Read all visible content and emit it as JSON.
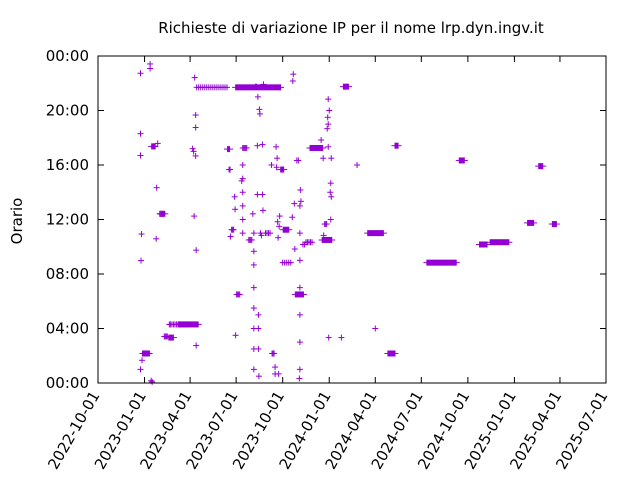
{
  "chart_data": {
    "type": "scatter",
    "title": "Richieste di variazione IP per il nome lrp.dyn.ingv.it",
    "xlabel": "",
    "ylabel": "Orario",
    "x_ticks": [
      "2022-10-01",
      "2023-01-01",
      "2023-04-01",
      "2023-07-01",
      "2023-10-01",
      "2024-01-01",
      "2024-04-01",
      "2024-07-01",
      "2024-10-01",
      "2025-01-01",
      "2025-04-01",
      "2025-07-01"
    ],
    "y_ticks": [
      "00:00",
      "04:00",
      "08:00",
      "12:00",
      "16:00",
      "20:00",
      "00:00"
    ],
    "xlim": [
      "2022-10-01",
      "2025-07-01"
    ],
    "ylim_hours": [
      0,
      24
    ],
    "grid": false,
    "legend": "none",
    "marker": "plus",
    "color": "#9400d3",
    "points": [
      {
        "date": "2022-12-24",
        "time": "22:44"
      },
      {
        "date": "2022-12-24",
        "time": "18:18"
      },
      {
        "date": "2022-12-24",
        "time": "16:42"
      },
      {
        "date": "2022-12-25",
        "time": "08:59"
      },
      {
        "date": "2022-12-26",
        "time": "10:56"
      },
      {
        "date": "2022-12-24",
        "time": "01:00"
      },
      {
        "date": "2022-12-27",
        "time": "01:40"
      },
      {
        "date": "2022-12-28",
        "time": "02:10"
      },
      {
        "date": "2022-12-30",
        "time": "02:10"
      },
      {
        "date": "2023-01-01",
        "time": "02:10"
      },
      {
        "date": "2023-01-03",
        "time": "02:10"
      },
      {
        "date": "2023-01-05",
        "time": "02:10"
      },
      {
        "date": "2023-01-07",
        "time": "02:10"
      },
      {
        "date": "2023-01-09",
        "time": "02:10"
      },
      {
        "date": "2023-01-11",
        "time": "02:10"
      },
      {
        "date": "2023-01-12",
        "time": "23:25"
      },
      {
        "date": "2023-01-12",
        "time": "23:05"
      },
      {
        "date": "2023-01-14",
        "time": "00:10"
      },
      {
        "date": "2023-01-16",
        "time": "00:05"
      },
      {
        "date": "2023-01-20",
        "time": "17:22"
      },
      {
        "date": "2023-01-22",
        "time": "17:22"
      },
      {
        "date": "2023-01-24",
        "time": "10:35"
      },
      {
        "date": "2023-01-25",
        "time": "14:20"
      },
      {
        "date": "2023-01-27",
        "time": "17:35"
      },
      {
        "date": "2023-01-31",
        "time": "12:25"
      },
      {
        "date": "2023-02-02",
        "time": "12:25"
      },
      {
        "date": "2023-02-04",
        "time": "12:25"
      },
      {
        "date": "2023-02-06",
        "time": "12:25"
      },
      {
        "date": "2023-02-09",
        "time": "03:25"
      },
      {
        "date": "2023-02-11",
        "time": "03:25"
      },
      {
        "date": "2023-02-13",
        "time": "03:25"
      },
      {
        "date": "2023-02-15",
        "time": "03:25"
      },
      {
        "date": "2023-02-19",
        "time": "04:18"
      },
      {
        "date": "2023-02-21",
        "time": "04:18"
      },
      {
        "date": "2023-02-24",
        "time": "04:18"
      },
      {
        "date": "2023-02-27",
        "time": "04:18"
      },
      {
        "date": "2023-03-02",
        "time": "04:18"
      },
      {
        "date": "2023-03-05",
        "time": "04:18"
      },
      {
        "date": "2023-03-08",
        "time": "04:18"
      },
      {
        "date": "2023-03-11",
        "time": "04:18"
      },
      {
        "date": "2023-03-14",
        "time": "04:18"
      },
      {
        "date": "2023-03-17",
        "time": "04:18"
      },
      {
        "date": "2023-03-20",
        "time": "04:18"
      },
      {
        "date": "2023-03-23",
        "time": "04:18"
      },
      {
        "date": "2023-03-26",
        "time": "04:18"
      },
      {
        "date": "2023-03-29",
        "time": "04:18"
      },
      {
        "date": "2023-04-06",
        "time": "17:12"
      },
      {
        "date": "2023-04-08",
        "time": "17:00"
      },
      {
        "date": "2023-04-09",
        "time": "12:15"
      },
      {
        "date": "2023-04-10",
        "time": "22:25"
      },
      {
        "date": "2023-04-12",
        "time": "19:40"
      },
      {
        "date": "2023-04-12",
        "time": "18:45"
      },
      {
        "date": "2023-04-12",
        "time": "16:40"
      },
      {
        "date": "2023-04-13",
        "time": "09:45"
      },
      {
        "date": "2023-04-13",
        "time": "02:45"
      },
      {
        "date": "2023-04-14",
        "time": "21:42"
      },
      {
        "date": "2023-04-18",
        "time": "21:42"
      },
      {
        "date": "2023-04-22",
        "time": "21:42"
      },
      {
        "date": "2023-04-26",
        "time": "21:42"
      },
      {
        "date": "2023-04-30",
        "time": "21:42"
      },
      {
        "date": "2023-05-04",
        "time": "21:42"
      },
      {
        "date": "2023-05-08",
        "time": "21:42"
      },
      {
        "date": "2023-05-12",
        "time": "21:42"
      },
      {
        "date": "2023-05-16",
        "time": "21:42"
      },
      {
        "date": "2023-05-20",
        "time": "21:42"
      },
      {
        "date": "2023-05-24",
        "time": "21:42"
      },
      {
        "date": "2023-05-28",
        "time": "21:42"
      },
      {
        "date": "2023-06-01",
        "time": "21:42"
      },
      {
        "date": "2023-06-05",
        "time": "21:42"
      },
      {
        "date": "2023-06-09",
        "time": "21:42"
      },
      {
        "date": "2023-06-13",
        "time": "21:42"
      },
      {
        "date": "2023-06-17",
        "time": "15:40"
      },
      {
        "date": "2023-06-19",
        "time": "15:40"
      },
      {
        "date": "2023-06-20",
        "time": "10:45"
      },
      {
        "date": "2023-06-22",
        "time": "11:15"
      },
      {
        "date": "2023-06-24",
        "time": "11:15"
      },
      {
        "date": "2023-06-26",
        "time": "11:15"
      },
      {
        "date": "2023-06-28",
        "time": "13:40"
      },
      {
        "date": "2023-06-29",
        "time": "12:45"
      },
      {
        "date": "2023-06-30",
        "time": "03:30"
      },
      {
        "date": "2023-07-02",
        "time": "06:30"
      },
      {
        "date": "2023-07-04",
        "time": "06:30"
      },
      {
        "date": "2023-07-06",
        "time": "06:30"
      },
      {
        "date": "2023-07-08",
        "time": "06:30"
      },
      {
        "date": "2023-07-12",
        "time": "14:50"
      },
      {
        "date": "2023-07-14",
        "time": "11:00"
      },
      {
        "date": "2023-07-14",
        "time": "12:00"
      },
      {
        "date": "2023-07-14",
        "time": "13:00"
      },
      {
        "date": "2023-07-14",
        "time": "14:00"
      },
      {
        "date": "2023-07-14",
        "time": "15:00"
      },
      {
        "date": "2023-07-14",
        "time": "16:00"
      },
      {
        "date": "2023-07-14",
        "time": "17:15"
      },
      {
        "date": "2023-07-16",
        "time": "17:15"
      },
      {
        "date": "2023-07-18",
        "time": "17:15"
      },
      {
        "date": "2023-07-20",
        "time": "17:15"
      },
      {
        "date": "2023-07-22",
        "time": "17:15"
      },
      {
        "date": "2023-07-26",
        "time": "10:30"
      },
      {
        "date": "2023-07-28",
        "time": "10:30"
      },
      {
        "date": "2023-07-30",
        "time": "10:30"
      },
      {
        "date": "2023-08-01",
        "time": "10:30"
      },
      {
        "date": "2023-08-03",
        "time": "12:25"
      },
      {
        "date": "2023-08-05",
        "time": "11:00"
      },
      {
        "date": "2023-08-05",
        "time": "09:40"
      },
      {
        "date": "2023-08-05",
        "time": "08:40"
      },
      {
        "date": "2023-08-05",
        "time": "07:00"
      },
      {
        "date": "2023-08-05",
        "time": "05:30"
      },
      {
        "date": "2023-08-05",
        "time": "04:00"
      },
      {
        "date": "2023-08-05",
        "time": "02:30"
      },
      {
        "date": "2023-08-05",
        "time": "01:00"
      },
      {
        "date": "2023-08-08",
        "time": "21:45"
      },
      {
        "date": "2023-08-10",
        "time": "21:45"
      },
      {
        "date": "2023-08-12",
        "time": "17:25"
      },
      {
        "date": "2023-08-12",
        "time": "13:50"
      },
      {
        "date": "2023-08-13",
        "time": "21:00"
      },
      {
        "date": "2023-08-14",
        "time": "05:00"
      },
      {
        "date": "2023-08-14",
        "time": "04:00"
      },
      {
        "date": "2023-08-14",
        "time": "02:30"
      },
      {
        "date": "2023-08-15",
        "time": "00:30"
      },
      {
        "date": "2023-08-16",
        "time": "20:05"
      },
      {
        "date": "2023-08-17",
        "time": "19:45"
      },
      {
        "date": "2023-08-18",
        "time": "11:00"
      },
      {
        "date": "2023-08-20",
        "time": "10:50"
      },
      {
        "date": "2023-08-22",
        "time": "17:30"
      },
      {
        "date": "2023-08-22",
        "time": "13:50"
      },
      {
        "date": "2023-08-23",
        "time": "12:40"
      },
      {
        "date": "2023-08-24",
        "time": "21:55"
      },
      {
        "date": "2023-08-28",
        "time": "11:00"
      },
      {
        "date": "2023-08-31",
        "time": "11:00"
      },
      {
        "date": "2023-09-03",
        "time": "11:00"
      },
      {
        "date": "2023-09-06",
        "time": "11:00"
      },
      {
        "date": "2023-09-09",
        "time": "16:00"
      },
      {
        "date": "2023-09-10",
        "time": "02:10"
      },
      {
        "date": "2023-09-12",
        "time": "02:10"
      },
      {
        "date": "2023-09-14",
        "time": "02:10"
      },
      {
        "date": "2023-09-16",
        "time": "01:10"
      },
      {
        "date": "2023-09-16",
        "time": "00:40"
      },
      {
        "date": "2023-09-18",
        "time": "17:20"
      },
      {
        "date": "2023-09-20",
        "time": "16:30"
      },
      {
        "date": "2023-09-19",
        "time": "15:50"
      },
      {
        "date": "2023-09-21",
        "time": "11:50"
      },
      {
        "date": "2023-09-22",
        "time": "10:40"
      },
      {
        "date": "2023-09-23",
        "time": "00:40"
      },
      {
        "date": "2023-09-24",
        "time": "11:30"
      },
      {
        "date": "2023-09-25",
        "time": "12:15"
      },
      {
        "date": "2023-10-01",
        "time": "08:50"
      },
      {
        "date": "2023-10-05",
        "time": "08:50"
      },
      {
        "date": "2023-10-09",
        "time": "08:50"
      },
      {
        "date": "2023-10-13",
        "time": "08:50"
      },
      {
        "date": "2023-10-17",
        "time": "08:50"
      },
      {
        "date": "2023-10-20",
        "time": "12:10"
      },
      {
        "date": "2023-10-21",
        "time": "22:10"
      },
      {
        "date": "2023-10-22",
        "time": "22:40"
      },
      {
        "date": "2023-10-24",
        "time": "13:10"
      },
      {
        "date": "2023-10-25",
        "time": "09:50"
      },
      {
        "date": "2023-10-29",
        "time": "16:20"
      },
      {
        "date": "2023-11-01",
        "time": "16:20"
      },
      {
        "date": "2023-11-03",
        "time": "00:20"
      },
      {
        "date": "2023-11-04",
        "time": "01:00"
      },
      {
        "date": "2023-11-04",
        "time": "03:00"
      },
      {
        "date": "2023-11-04",
        "time": "05:00"
      },
      {
        "date": "2023-11-04",
        "time": "07:00"
      },
      {
        "date": "2023-11-04",
        "time": "09:00"
      },
      {
        "date": "2023-11-04",
        "time": "11:00"
      },
      {
        "date": "2023-11-04",
        "time": "13:00"
      },
      {
        "date": "2023-11-05",
        "time": "14:10"
      },
      {
        "date": "2023-11-06",
        "time": "13:20"
      },
      {
        "date": "2023-11-10",
        "time": "10:10"
      },
      {
        "date": "2023-11-13",
        "time": "10:10"
      },
      {
        "date": "2023-11-16",
        "time": "10:20"
      },
      {
        "date": "2023-11-19",
        "time": "10:20"
      },
      {
        "date": "2023-11-22",
        "time": "10:20"
      },
      {
        "date": "2023-11-25",
        "time": "10:20"
      },
      {
        "date": "2023-11-28",
        "time": "10:20"
      },
      {
        "date": "2023-12-16",
        "time": "17:50"
      },
      {
        "date": "2023-12-20",
        "time": "16:30"
      },
      {
        "date": "2023-12-21",
        "time": "10:50"
      },
      {
        "date": "2023-12-23",
        "time": "11:40"
      },
      {
        "date": "2023-12-25",
        "time": "11:40"
      },
      {
        "date": "2023-12-27",
        "time": "11:40"
      },
      {
        "date": "2023-12-28",
        "time": "18:40"
      },
      {
        "date": "2023-12-29",
        "time": "19:30"
      },
      {
        "date": "2023-12-30",
        "time": "20:50"
      },
      {
        "date": "2023-12-30",
        "time": "19:00"
      },
      {
        "date": "2023-12-30",
        "time": "17:20"
      },
      {
        "date": "2023-12-31",
        "time": "03:20"
      },
      {
        "date": "2024-01-01",
        "time": "20:00"
      },
      {
        "date": "2024-01-03",
        "time": "14:00"
      },
      {
        "date": "2024-01-04",
        "time": "14:40"
      },
      {
        "date": "2024-01-04",
        "time": "12:00"
      },
      {
        "date": "2024-01-05",
        "time": "13:40"
      },
      {
        "date": "2024-01-05",
        "time": "16:30"
      },
      {
        "date": "2024-01-25",
        "time": "03:20"
      },
      {
        "date": "2024-02-25",
        "time": "16:00"
      },
      {
        "date": "2024-04-01",
        "time": "04:00"
      }
    ],
    "segments": [
      {
        "start": "2022-12-29",
        "end": "2023-01-10",
        "time": "02:10"
      },
      {
        "start": "2023-02-17",
        "end": "2023-02-28",
        "time": "03:20"
      },
      {
        "start": "2023-03-08",
        "end": "2023-04-18",
        "time": "04:18"
      },
      {
        "start": "2023-01-14",
        "end": "2023-01-22",
        "time": "17:22"
      },
      {
        "start": "2023-02-01",
        "end": "2023-02-11",
        "time": "12:25"
      },
      {
        "start": "2023-06-29",
        "end": "2023-09-28",
        "time": "21:42"
      },
      {
        "start": "2023-06-13",
        "end": "2023-06-19",
        "time": "17:10"
      },
      {
        "start": "2023-09-26",
        "end": "2023-10-04",
        "time": "15:40"
      },
      {
        "start": "2023-10-01",
        "end": "2023-10-14",
        "time": "11:15"
      },
      {
        "start": "2023-10-25",
        "end": "2023-11-12",
        "time": "06:30"
      },
      {
        "start": "2023-11-23",
        "end": "2023-12-20",
        "time": "17:15"
      },
      {
        "start": "2023-12-17",
        "end": "2024-01-07",
        "time": "10:30"
      },
      {
        "start": "2024-01-28",
        "end": "2024-02-09",
        "time": "21:45"
      },
      {
        "start": "2024-03-16",
        "end": "2024-04-18",
        "time": "11:00"
      },
      {
        "start": "2024-04-25",
        "end": "2024-05-11",
        "time": "02:10"
      },
      {
        "start": "2024-05-09",
        "end": "2024-05-17",
        "time": "17:25"
      },
      {
        "start": "2024-07-11",
        "end": "2024-09-09",
        "time": "08:50"
      },
      {
        "start": "2024-09-13",
        "end": "2024-09-25",
        "time": "16:20"
      },
      {
        "start": "2024-10-23",
        "end": "2024-11-09",
        "time": "10:10"
      },
      {
        "start": "2024-11-13",
        "end": "2024-12-22",
        "time": "10:20"
      },
      {
        "start": "2025-01-26",
        "end": "2025-02-09",
        "time": "11:45"
      },
      {
        "start": "2025-02-17",
        "end": "2025-02-27",
        "time": "15:55"
      },
      {
        "start": "2025-03-16",
        "end": "2025-03-26",
        "time": "11:40"
      }
    ]
  }
}
